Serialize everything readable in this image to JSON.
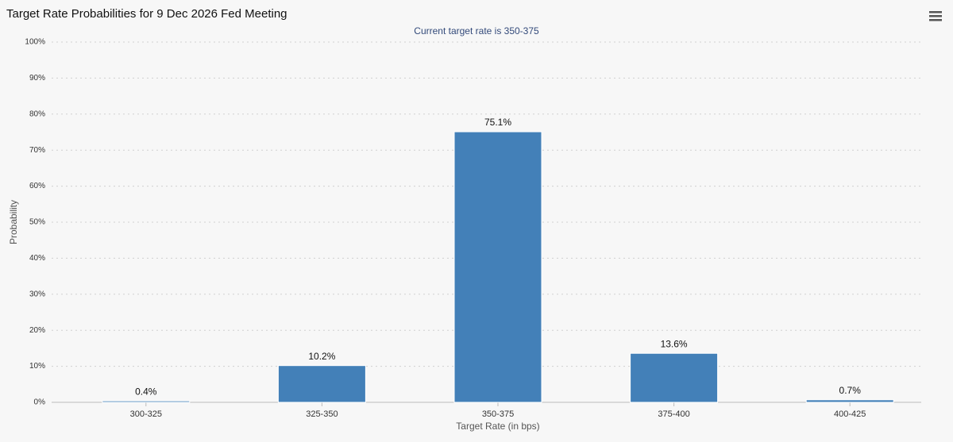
{
  "chart_data": {
    "type": "bar",
    "title": "Target Rate Probabilities for 9 Dec 2026 Fed Meeting",
    "subtitle": "Current target rate is 350-375",
    "x_label": "Target Rate (in bps)",
    "y_label": "Probability",
    "categories": [
      "300-325",
      "325-350",
      "350-375",
      "375-400",
      "400-425"
    ],
    "values": [
      0.4,
      10.2,
      75.1,
      13.6,
      0.7
    ],
    "value_labels": [
      "0.4%",
      "10.2%",
      "75.1%",
      "13.6%",
      "0.7%"
    ],
    "color": "#4380b8",
    "ylim": [
      0,
      100
    ],
    "yticks": [
      {
        "value": 0,
        "label": "0%"
      },
      {
        "value": 10,
        "label": "10%"
      },
      {
        "value": 20,
        "label": "20%"
      },
      {
        "value": 30,
        "label": "30%"
      },
      {
        "value": 40,
        "label": "40%"
      },
      {
        "value": 50,
        "label": "50%"
      },
      {
        "value": 60,
        "label": "60%"
      },
      {
        "value": 70,
        "label": "70%"
      },
      {
        "value": 80,
        "label": "80%"
      },
      {
        "value": 90,
        "label": "90%"
      },
      {
        "value": 100,
        "label": "100%"
      }
    ],
    "grid": true
  }
}
